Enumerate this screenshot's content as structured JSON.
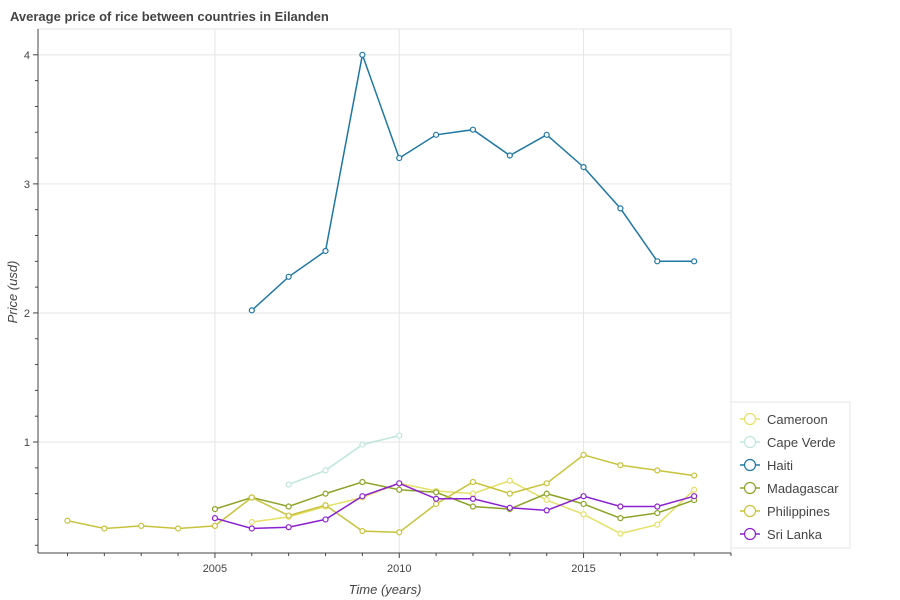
{
  "chart_data": {
    "type": "line",
    "title": "Average price of rice between countries in Eilanden",
    "xlabel": "Time (years)",
    "ylabel": "Price (usd)",
    "xlim": [
      2000.2,
      2019.0
    ],
    "ylim": [
      0.14,
      4.2
    ],
    "xticks": [
      2005,
      2010,
      2015
    ],
    "yticks": [
      1,
      2,
      3,
      4
    ],
    "grid": true,
    "legend_position": "bottom-right",
    "series": [
      {
        "name": "Cameroon",
        "color": "#e5e066",
        "points": [
          [
            2006,
            0.38
          ],
          [
            2007,
            0.42
          ],
          [
            2008,
            0.5
          ],
          [
            2009,
            0.57
          ],
          [
            2010,
            0.68
          ],
          [
            2011,
            0.62
          ],
          [
            2012,
            0.6
          ],
          [
            2013,
            0.7
          ],
          [
            2014,
            0.55
          ],
          [
            2015,
            0.44
          ],
          [
            2016,
            0.29
          ],
          [
            2017,
            0.36
          ],
          [
            2018,
            0.63
          ]
        ]
      },
      {
        "name": "Cape Verde",
        "color": "#bfe6dd",
        "points": [
          [
            2007,
            0.67
          ],
          [
            2008,
            0.78
          ],
          [
            2009,
            0.98
          ],
          [
            2010,
            1.05
          ]
        ]
      },
      {
        "name": "Haiti",
        "color": "#1f77a4",
        "points": [
          [
            2006,
            2.02
          ],
          [
            2007,
            2.28
          ],
          [
            2008,
            2.48
          ],
          [
            2009,
            4.0
          ],
          [
            2010,
            3.2
          ],
          [
            2011,
            3.38
          ],
          [
            2012,
            3.42
          ],
          [
            2013,
            3.22
          ],
          [
            2014,
            3.38
          ],
          [
            2015,
            3.13
          ],
          [
            2016,
            2.81
          ],
          [
            2017,
            2.4
          ],
          [
            2018,
            2.4
          ]
        ]
      },
      {
        "name": "Madagascar",
        "color": "#8da328",
        "points": [
          [
            2005,
            0.48
          ],
          [
            2006,
            0.57
          ],
          [
            2007,
            0.5
          ],
          [
            2008,
            0.6
          ],
          [
            2009,
            0.69
          ],
          [
            2010,
            0.63
          ],
          [
            2011,
            0.61
          ],
          [
            2012,
            0.5
          ],
          [
            2013,
            0.48
          ],
          [
            2014,
            0.6
          ],
          [
            2015,
            0.52
          ],
          [
            2016,
            0.41
          ],
          [
            2017,
            0.45
          ],
          [
            2018,
            0.55
          ]
        ]
      },
      {
        "name": "Philippines",
        "color": "#c8c23a",
        "points": [
          [
            2001,
            0.39
          ],
          [
            2002,
            0.33
          ],
          [
            2003,
            0.35
          ],
          [
            2004,
            0.33
          ],
          [
            2005,
            0.35
          ],
          [
            2006,
            0.57
          ],
          [
            2007,
            0.43
          ],
          [
            2008,
            0.51
          ],
          [
            2009,
            0.31
          ],
          [
            2010,
            0.3
          ],
          [
            2011,
            0.52
          ],
          [
            2012,
            0.69
          ],
          [
            2013,
            0.6
          ],
          [
            2014,
            0.68
          ],
          [
            2015,
            0.9
          ],
          [
            2016,
            0.82
          ],
          [
            2017,
            0.78
          ],
          [
            2018,
            0.74
          ]
        ]
      },
      {
        "name": "Sri Lanka",
        "color": "#8c1fd1",
        "points": [
          [
            2005,
            0.41
          ],
          [
            2006,
            0.33
          ],
          [
            2007,
            0.34
          ],
          [
            2008,
            0.4
          ],
          [
            2009,
            0.58
          ],
          [
            2010,
            0.68
          ],
          [
            2011,
            0.56
          ],
          [
            2012,
            0.56
          ],
          [
            2013,
            0.49
          ],
          [
            2014,
            0.47
          ],
          [
            2015,
            0.58
          ],
          [
            2016,
            0.5
          ],
          [
            2017,
            0.5
          ],
          [
            2018,
            0.58
          ]
        ]
      }
    ]
  }
}
